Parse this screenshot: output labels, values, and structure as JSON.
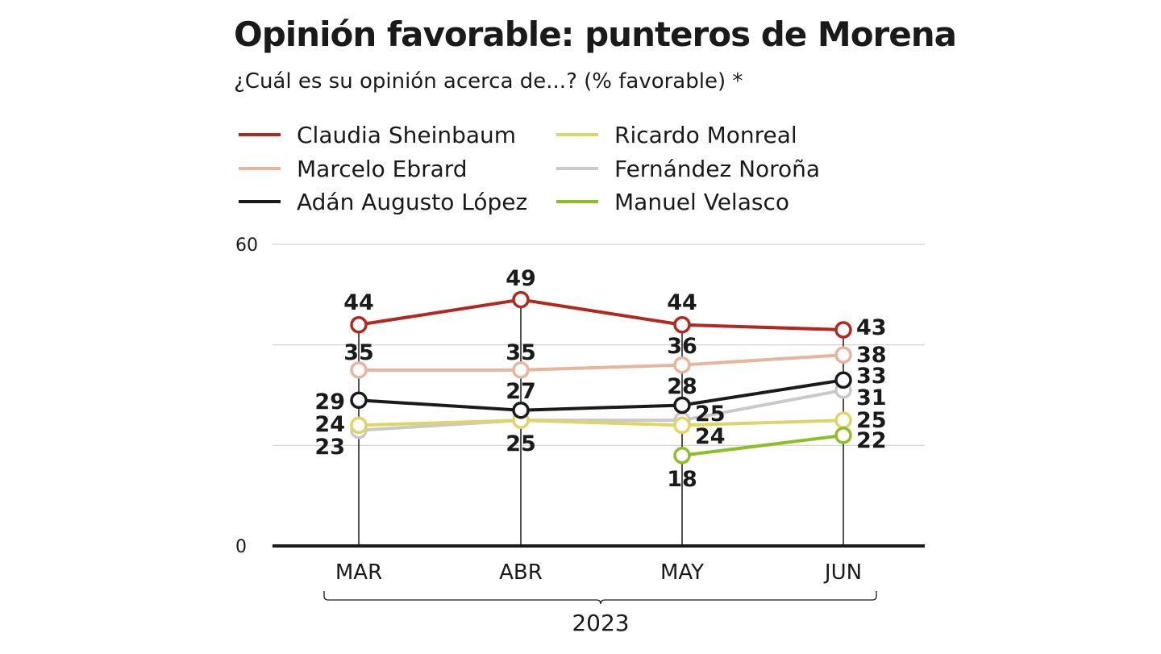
{
  "chart_data": {
    "type": "line",
    "title": "Opinión favorable: punteros de Morena",
    "subtitle": "¿Cuál es su opinión acerca de...? (% favorable) *",
    "categories": [
      "MAR",
      "ABR",
      "MAY",
      "JUN"
    ],
    "x_group_label": "2023",
    "ylim": [
      0,
      60
    ],
    "y_ticks": [
      0,
      60
    ],
    "grid": true,
    "legend_position": "top",
    "series": [
      {
        "name": "Claudia Sheinbaum",
        "color": "#b3281e",
        "values": [
          44,
          49,
          44,
          43
        ],
        "labels": [
          "44",
          "49",
          "44",
          "43"
        ]
      },
      {
        "name": "Marcelo Ebrard",
        "color": "#e8b49c",
        "values": [
          35,
          35,
          36,
          38
        ],
        "labels": [
          "35",
          "35",
          "36",
          "38"
        ]
      },
      {
        "name": "Adán Augusto López",
        "color": "#1a1a1a",
        "values": [
          29,
          27,
          28,
          33
        ],
        "labels": [
          "29",
          "27",
          "28",
          "33"
        ]
      },
      {
        "name": "Ricardo Monreal",
        "color": "#dfd466",
        "values": [
          24,
          25,
          24,
          25
        ],
        "labels": [
          "24",
          "",
          "24",
          "25"
        ]
      },
      {
        "name": "Fernández Noroña",
        "color": "#c9c9c9",
        "values": [
          23,
          25,
          25,
          31
        ],
        "labels": [
          "23",
          "25",
          "25",
          "31"
        ]
      },
      {
        "name": "Manuel Velasco",
        "color": "#8cbf26",
        "values": [
          null,
          null,
          18,
          22
        ],
        "labels": [
          "",
          "",
          "18",
          "22"
        ]
      }
    ]
  }
}
